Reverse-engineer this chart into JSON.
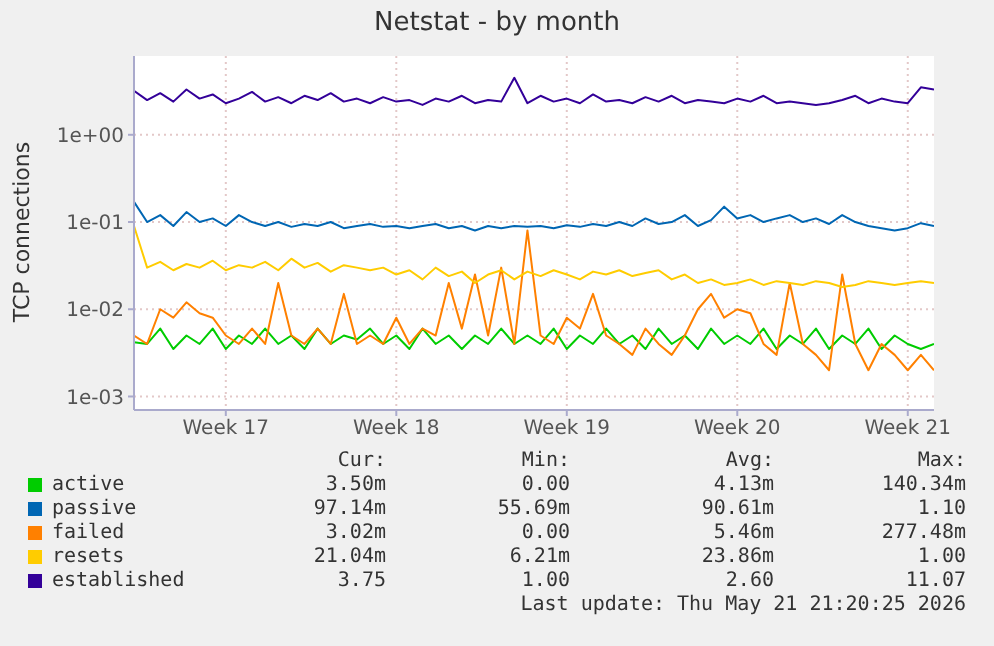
{
  "chart_data": {
    "type": "line",
    "title": "Netstat - by month",
    "ylabel": "TCP connections",
    "log": "y",
    "grid": true,
    "legend": "bottom",
    "marker": "none",
    "line_style": "solid",
    "categories": [
      null,
      null,
      null,
      null,
      null,
      null,
      null,
      "Week 17",
      null,
      null,
      null,
      null,
      null,
      null,
      null,
      null,
      null,
      null,
      null,
      null,
      "Week 18",
      null,
      null,
      null,
      null,
      null,
      null,
      null,
      null,
      null,
      null,
      null,
      null,
      "Week 19",
      null,
      null,
      null,
      null,
      null,
      null,
      null,
      null,
      null,
      null,
      null,
      null,
      "Week 20",
      null,
      null,
      null,
      null,
      null,
      null,
      null,
      null,
      null,
      null,
      null,
      null,
      "Week 21",
      null,
      null
    ],
    "ylim": [
      0.0007,
      8
    ],
    "yticks": [
      {
        "value": 0.001,
        "label": "1e-03"
      },
      {
        "value": 0.01,
        "label": "1e-02"
      },
      {
        "value": 0.1,
        "label": "1e-01"
      },
      {
        "value": 1,
        "label": "1e+00"
      }
    ],
    "series": [
      {
        "name": "active",
        "color": "#00cc00",
        "values": [
          0.0042,
          0.004,
          0.006,
          0.0035,
          0.005,
          0.004,
          0.006,
          0.0035,
          0.005,
          0.004,
          0.006,
          0.004,
          0.005,
          0.0035,
          0.006,
          0.004,
          0.005,
          0.0045,
          0.006,
          0.004,
          0.005,
          0.0035,
          0.006,
          0.004,
          0.005,
          0.0035,
          0.005,
          0.004,
          0.006,
          0.004,
          0.005,
          0.004,
          0.006,
          0.0035,
          0.005,
          0.004,
          0.006,
          0.004,
          0.005,
          0.0035,
          0.006,
          0.004,
          0.005,
          0.0035,
          0.006,
          0.004,
          0.005,
          0.004,
          0.006,
          0.0035,
          0.005,
          0.004,
          0.006,
          0.0035,
          0.005,
          0.004,
          0.006,
          0.0035,
          0.005,
          0.004,
          0.0035,
          0.004
        ]
      },
      {
        "name": "passive",
        "color": "#0066b3",
        "values": [
          0.17,
          0.1,
          0.12,
          0.09,
          0.13,
          0.1,
          0.11,
          0.09,
          0.12,
          0.1,
          0.09,
          0.1,
          0.088,
          0.095,
          0.09,
          0.1,
          0.085,
          0.09,
          0.095,
          0.088,
          0.09,
          0.085,
          0.09,
          0.095,
          0.085,
          0.09,
          0.08,
          0.09,
          0.085,
          0.09,
          0.088,
          0.09,
          0.085,
          0.092,
          0.088,
          0.095,
          0.09,
          0.1,
          0.09,
          0.11,
          0.095,
          0.1,
          0.12,
          0.09,
          0.105,
          0.15,
          0.11,
          0.12,
          0.1,
          0.11,
          0.12,
          0.1,
          0.11,
          0.095,
          0.12,
          0.1,
          0.09,
          0.085,
          0.08,
          0.085,
          0.097,
          0.09
        ]
      },
      {
        "name": "failed",
        "color": "#ff8000",
        "values": [
          0.005,
          0.004,
          0.01,
          0.008,
          0.012,
          0.009,
          0.008,
          0.005,
          0.004,
          0.006,
          0.004,
          0.02,
          0.005,
          0.004,
          0.006,
          0.004,
          0.015,
          0.004,
          0.005,
          0.004,
          0.008,
          0.004,
          0.006,
          0.005,
          0.02,
          0.006,
          0.025,
          0.005,
          0.03,
          0.004,
          0.08,
          0.005,
          0.004,
          0.008,
          0.006,
          0.015,
          0.005,
          0.004,
          0.003,
          0.006,
          0.004,
          0.003,
          0.005,
          0.01,
          0.015,
          0.008,
          0.01,
          0.009,
          0.004,
          0.003,
          0.02,
          0.004,
          0.003,
          0.002,
          0.025,
          0.004,
          0.002,
          0.004,
          0.003,
          0.002,
          0.003,
          0.002
        ]
      },
      {
        "name": "resets",
        "color": "#ffcc00",
        "values": [
          0.09,
          0.03,
          0.035,
          0.028,
          0.033,
          0.03,
          0.036,
          0.028,
          0.032,
          0.03,
          0.035,
          0.028,
          0.038,
          0.03,
          0.034,
          0.027,
          0.032,
          0.03,
          0.028,
          0.03,
          0.025,
          0.028,
          0.022,
          0.03,
          0.024,
          0.027,
          0.02,
          0.025,
          0.028,
          0.022,
          0.027,
          0.024,
          0.028,
          0.025,
          0.022,
          0.027,
          0.025,
          0.028,
          0.024,
          0.026,
          0.028,
          0.022,
          0.025,
          0.02,
          0.022,
          0.019,
          0.02,
          0.022,
          0.019,
          0.021,
          0.02,
          0.019,
          0.021,
          0.02,
          0.018,
          0.019,
          0.021,
          0.02,
          0.019,
          0.02,
          0.021,
          0.02
        ]
      },
      {
        "name": "established",
        "color": "#330099",
        "values": [
          3.2,
          2.5,
          3.0,
          2.4,
          3.3,
          2.6,
          2.9,
          2.3,
          2.6,
          3.1,
          2.4,
          2.7,
          2.3,
          2.8,
          2.5,
          3.0,
          2.4,
          2.6,
          2.3,
          2.7,
          2.4,
          2.5,
          2.2,
          2.6,
          2.4,
          2.8,
          2.3,
          2.5,
          2.4,
          4.5,
          2.3,
          2.8,
          2.4,
          2.6,
          2.3,
          2.9,
          2.4,
          2.5,
          2.3,
          2.7,
          2.4,
          2.8,
          2.3,
          2.5,
          2.4,
          2.3,
          2.6,
          2.4,
          2.8,
          2.3,
          2.4,
          2.3,
          2.2,
          2.3,
          2.5,
          2.8,
          2.3,
          2.6,
          2.4,
          2.3,
          3.5,
          3.3
        ]
      }
    ],
    "annotations": [
      "Cur:",
      "Min:",
      "Avg:",
      "Max:",
      "3.50m",
      "0.00",
      "4.13m",
      "140.34m",
      "97.14m",
      "55.69m",
      "90.61m",
      "1.10",
      "3.02m",
      "0.00",
      "5.46m",
      "277.48m",
      "21.04m",
      "6.21m",
      "23.86m",
      "1.00",
      "3.75",
      "1.00",
      "2.60",
      "11.07",
      "Last update: Thu May 21 21:20:25 2026"
    ]
  }
}
